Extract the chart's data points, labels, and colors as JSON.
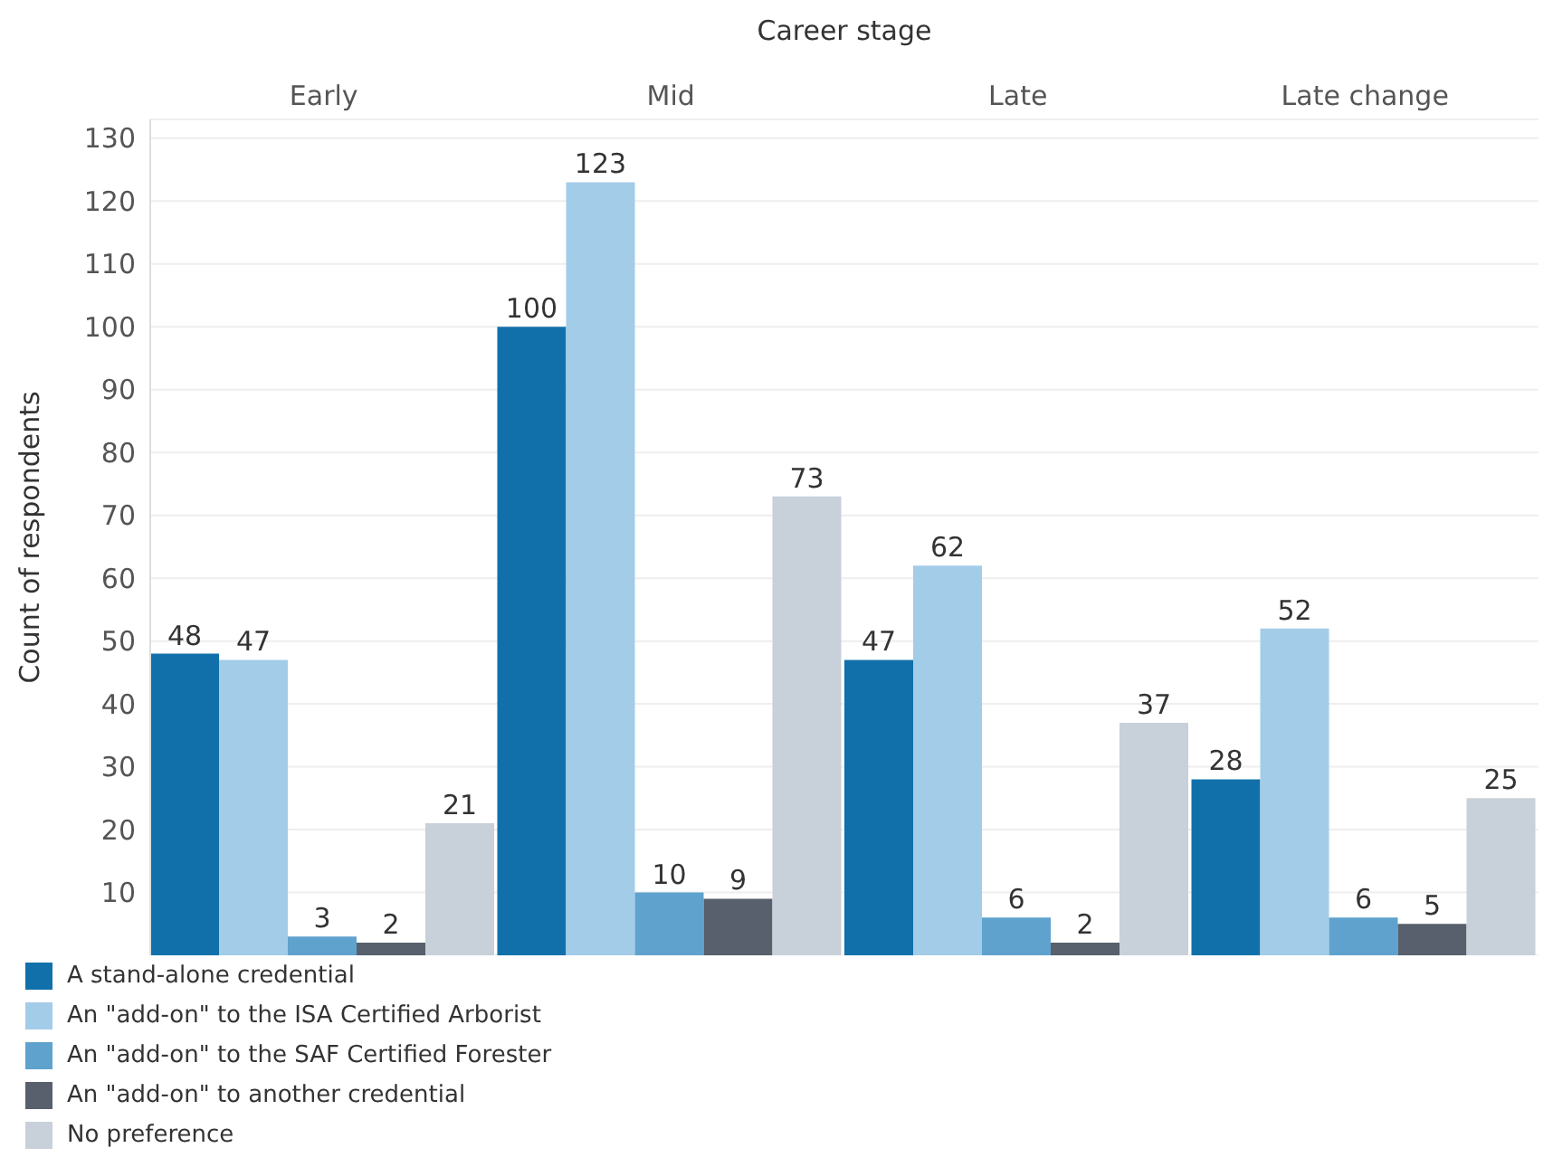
{
  "chart_data": {
    "type": "bar",
    "xlabel": "Career stage",
    "ylabel": "Count of respondents",
    "categories": [
      "Early",
      "Mid",
      "Late",
      "Late change"
    ],
    "series": [
      {
        "name": "A stand-alone credential",
        "color": "#1170aa",
        "values": [
          48,
          100,
          47,
          28
        ]
      },
      {
        "name": "An \"add-on\" to the ISA Certified Arborist",
        "color": "#a3cce9",
        "values": [
          47,
          123,
          62,
          52
        ]
      },
      {
        "name": "An \"add-on\" to the SAF Certified Forester",
        "color": "#5fa2ce",
        "values": [
          3,
          10,
          6,
          6
        ]
      },
      {
        "name": "An \"add-on\" to another credential",
        "color": "#57606c",
        "values": [
          2,
          9,
          2,
          5
        ]
      },
      {
        "name": "No preference",
        "color": "#c8d0d9",
        "values": [
          21,
          73,
          37,
          25
        ]
      }
    ],
    "ylim": [
      0,
      133
    ],
    "yticks": [
      10,
      20,
      30,
      40,
      50,
      60,
      70,
      80,
      90,
      100,
      110,
      120,
      130
    ],
    "grid": "y",
    "legend": "bottom",
    "data_labels": true
  }
}
